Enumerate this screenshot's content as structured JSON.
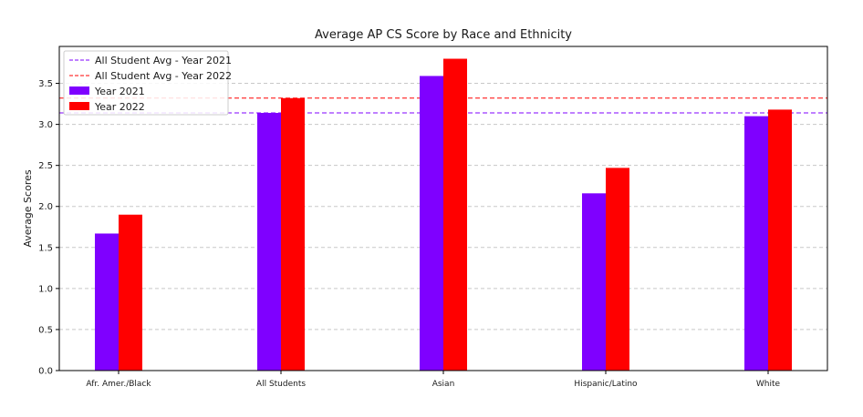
{
  "chart_data": {
    "type": "bar",
    "title": "Average AP CS Score by Race and Ethnicity",
    "xlabel": "",
    "ylabel": "Average Scores",
    "categories": [
      "Afr. Amer./Black",
      "All Students",
      "Asian",
      "Hispanic/Latino",
      "White"
    ],
    "series": [
      {
        "name": "Year 2021",
        "color": "#7f00ff",
        "values": [
          1.67,
          3.14,
          3.59,
          2.16,
          3.1
        ]
      },
      {
        "name": "Year 2022",
        "color": "#ff0000",
        "values": [
          1.9,
          3.32,
          3.8,
          2.47,
          3.18
        ]
      }
    ],
    "reference_lines": [
      {
        "name": "All Student Avg - Year 2021",
        "color": "#7f00ff",
        "value": 3.14,
        "style": "dashed"
      },
      {
        "name": "All Student Avg - Year 2022",
        "color": "#ff0000",
        "value": 3.32,
        "style": "dashed"
      }
    ],
    "ylim": [
      0,
      3.95
    ],
    "yticks": [
      "0.0",
      "0.5",
      "1.0",
      "1.5",
      "2.0",
      "2.5",
      "3.0",
      "3.5"
    ],
    "grid": "horizontal dashed",
    "legend_position": "top-left"
  }
}
